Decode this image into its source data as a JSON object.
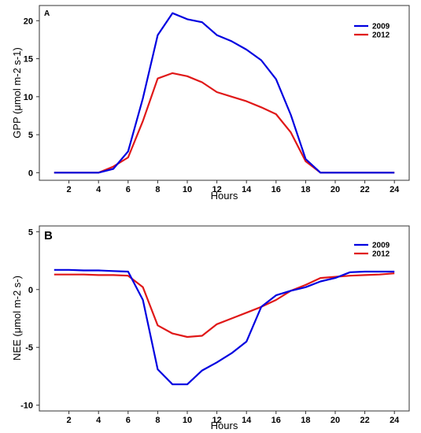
{
  "chart_data": [
    {
      "type": "line",
      "panel_label": "A",
      "xlabel": "Hours",
      "ylabel": "GPP (μmol m-2 s-1)",
      "x": [
        1,
        2,
        3,
        4,
        5,
        6,
        7,
        8,
        9,
        10,
        11,
        12,
        13,
        14,
        15,
        16,
        17,
        18,
        19,
        20,
        21,
        22,
        23,
        24
      ],
      "xlim": [
        0,
        25
      ],
      "ylim": [
        -1,
        22
      ],
      "xticks": [
        2,
        4,
        6,
        8,
        10,
        12,
        14,
        16,
        18,
        20,
        22,
        24
      ],
      "yticks": [
        0,
        5,
        10,
        15,
        20
      ],
      "grid": false,
      "legend_position": "top-right",
      "series": [
        {
          "name": "2009",
          "color": "#0000e0",
          "values": [
            0,
            0,
            0,
            0,
            0.5,
            2.8,
            9.8,
            18.1,
            21,
            20.2,
            19.8,
            18.1,
            17.3,
            16.2,
            14.8,
            12.3,
            7.6,
            1.8,
            0,
            0,
            0,
            0,
            0,
            0
          ]
        },
        {
          "name": "2012",
          "color": "#e01818",
          "values": [
            0,
            0,
            0,
            0,
            0.8,
            2.0,
            6.8,
            12.4,
            13.1,
            12.7,
            11.9,
            10.6,
            10.0,
            9.4,
            8.6,
            7.7,
            5.3,
            1.5,
            0,
            0,
            0,
            0,
            0,
            0
          ]
        }
      ]
    },
    {
      "type": "line",
      "panel_label": "B",
      "xlabel": "Hours",
      "ylabel": "NEE (μmol m-2 s-)",
      "x": [
        1,
        2,
        3,
        4,
        5,
        6,
        7,
        8,
        9,
        10,
        11,
        12,
        13,
        14,
        15,
        16,
        17,
        18,
        19,
        20,
        21,
        22,
        23,
        24
      ],
      "xlim": [
        0,
        25
      ],
      "ylim": [
        -10.5,
        5.5
      ],
      "xticks": [
        2,
        4,
        6,
        8,
        10,
        12,
        14,
        16,
        18,
        20,
        22,
        24
      ],
      "yticks": [
        -10,
        -5,
        0,
        5
      ],
      "grid": false,
      "legend_position": "top-right",
      "series": [
        {
          "name": "2009",
          "color": "#0000e0",
          "values": [
            1.7,
            1.7,
            1.65,
            1.65,
            1.6,
            1.55,
            -0.9,
            -6.9,
            -8.2,
            -8.2,
            -7.0,
            -6.3,
            -5.5,
            -4.5,
            -1.5,
            -0.5,
            -0.1,
            0.2,
            0.7,
            1.0,
            1.5,
            1.55,
            1.55,
            1.55
          ]
        },
        {
          "name": "2012",
          "color": "#e01818",
          "values": [
            1.3,
            1.3,
            1.3,
            1.25,
            1.25,
            1.2,
            0.2,
            -3.1,
            -3.8,
            -4.1,
            -4.0,
            -3.0,
            -2.5,
            -2.0,
            -1.5,
            -0.9,
            -0.1,
            0.4,
            1.0,
            1.1,
            1.2,
            1.25,
            1.3,
            1.4
          ]
        }
      ]
    }
  ]
}
